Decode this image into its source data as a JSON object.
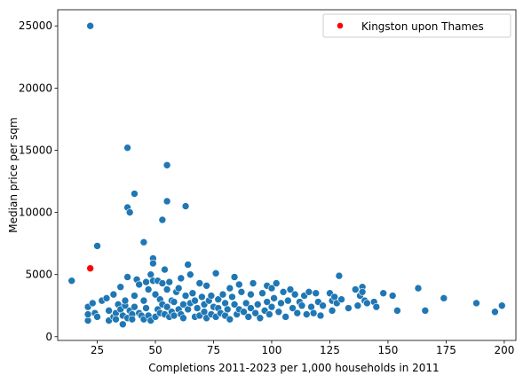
{
  "chart_data": {
    "type": "scatter",
    "title": "",
    "xlabel": "Completions 2011-2023 per 1,000 households in 2011",
    "ylabel": "Median price per sqm",
    "xlim": [
      8,
      205
    ],
    "ylim": [
      -300,
      26300
    ],
    "xticks": [
      25,
      50,
      75,
      100,
      125,
      150,
      175,
      200
    ],
    "yticks": [
      0,
      5000,
      10000,
      15000,
      20000,
      25000
    ],
    "grid": false,
    "legend_position": "top-right",
    "colors": {
      "default": "#1f77b4",
      "highlight": "#ff0000",
      "axis": "#000000",
      "marker_edge": "#ffffff"
    },
    "series": [
      {
        "name": "",
        "color": "#1f77b4",
        "points": [
          [
            22,
            25000
          ],
          [
            38,
            15200
          ],
          [
            55,
            13800
          ],
          [
            41,
            11500
          ],
          [
            55,
            10900
          ],
          [
            38,
            10400
          ],
          [
            39,
            10000
          ],
          [
            63,
            10500
          ],
          [
            53,
            9400
          ],
          [
            45,
            7600
          ],
          [
            25,
            7300
          ],
          [
            14,
            4500
          ],
          [
            21,
            1300
          ],
          [
            21,
            1800
          ],
          [
            21,
            2400
          ],
          [
            23,
            2700
          ],
          [
            24,
            1900
          ],
          [
            25,
            1600
          ],
          [
            27,
            2900
          ],
          [
            29,
            3100
          ],
          [
            30,
            2100
          ],
          [
            30,
            1300
          ],
          [
            32,
            3400
          ],
          [
            32,
            1600
          ],
          [
            33,
            1900
          ],
          [
            33,
            1400
          ],
          [
            34,
            2600
          ],
          [
            35,
            4000
          ],
          [
            35,
            2200
          ],
          [
            36,
            1700
          ],
          [
            36,
            1000
          ],
          [
            37,
            2500
          ],
          [
            37,
            2900
          ],
          [
            38,
            4800
          ],
          [
            38,
            1500
          ],
          [
            39,
            2100
          ],
          [
            40,
            1800
          ],
          [
            40,
            1400
          ],
          [
            41,
            2400
          ],
          [
            41,
            3300
          ],
          [
            42,
            4600
          ],
          [
            43,
            1900
          ],
          [
            43,
            4200
          ],
          [
            44,
            1700
          ],
          [
            45,
            2900
          ],
          [
            45,
            1400
          ],
          [
            46,
            4400
          ],
          [
            46,
            2300
          ],
          [
            47,
            3800
          ],
          [
            47,
            1700
          ],
          [
            48,
            5000
          ],
          [
            48,
            1300
          ],
          [
            49,
            6300
          ],
          [
            49,
            5900
          ],
          [
            49,
            4500
          ],
          [
            50,
            1600
          ],
          [
            50,
            3400
          ],
          [
            51,
            4500
          ],
          [
            51,
            2200
          ],
          [
            52,
            1900
          ],
          [
            52,
            3000
          ],
          [
            53,
            4300
          ],
          [
            53,
            2600
          ],
          [
            54,
            5400
          ],
          [
            54,
            1800
          ],
          [
            55,
            3800
          ],
          [
            55,
            2400
          ],
          [
            56,
            1600
          ],
          [
            56,
            4400
          ],
          [
            57,
            2900
          ],
          [
            57,
            2000
          ],
          [
            58,
            1700
          ],
          [
            58,
            2800
          ],
          [
            59,
            3600
          ],
          [
            60,
            3900
          ],
          [
            60,
            2200
          ],
          [
            61,
            1800
          ],
          [
            61,
            4700
          ],
          [
            62,
            2600
          ],
          [
            62,
            1500
          ],
          [
            63,
            3300
          ],
          [
            64,
            5800
          ],
          [
            64,
            2200
          ],
          [
            65,
            5000
          ],
          [
            65,
            2700
          ],
          [
            66,
            3500
          ],
          [
            67,
            1600
          ],
          [
            67,
            2900
          ],
          [
            68,
            2300
          ],
          [
            69,
            4300
          ],
          [
            69,
            1700
          ],
          [
            70,
            3200
          ],
          [
            71,
            2600
          ],
          [
            71,
            2000
          ],
          [
            72,
            4100
          ],
          [
            72,
            1500
          ],
          [
            73,
            2900
          ],
          [
            74,
            3300
          ],
          [
            74,
            1800
          ],
          [
            75,
            2400
          ],
          [
            76,
            5100
          ],
          [
            76,
            1600
          ],
          [
            77,
            3000
          ],
          [
            77,
            2300
          ],
          [
            78,
            1900
          ],
          [
            79,
            3400
          ],
          [
            80,
            2700
          ],
          [
            80,
            1700
          ],
          [
            81,
            2200
          ],
          [
            82,
            3900
          ],
          [
            82,
            1400
          ],
          [
            83,
            3200
          ],
          [
            84,
            4800
          ],
          [
            84,
            2600
          ],
          [
            85,
            1800
          ],
          [
            86,
            4200
          ],
          [
            86,
            2200
          ],
          [
            87,
            3600
          ],
          [
            88,
            2000
          ],
          [
            89,
            2700
          ],
          [
            90,
            1600
          ],
          [
            91,
            3400
          ],
          [
            91,
            2300
          ],
          [
            92,
            4300
          ],
          [
            93,
            1900
          ],
          [
            94,
            2600
          ],
          [
            95,
            1500
          ],
          [
            96,
            3500
          ],
          [
            97,
            2100
          ],
          [
            98,
            4100
          ],
          [
            98,
            2800
          ],
          [
            99,
            1800
          ],
          [
            100,
            3900
          ],
          [
            100,
            2400
          ],
          [
            101,
            3100
          ],
          [
            102,
            4300
          ],
          [
            103,
            2000
          ],
          [
            104,
            2700
          ],
          [
            105,
            3600
          ],
          [
            106,
            1600
          ],
          [
            107,
            2900
          ],
          [
            108,
            3800
          ],
          [
            109,
            2300
          ],
          [
            110,
            3400
          ],
          [
            111,
            1900
          ],
          [
            112,
            2800
          ],
          [
            113,
            2500
          ],
          [
            114,
            3300
          ],
          [
            115,
            1800
          ],
          [
            116,
            3600
          ],
          [
            117,
            2400
          ],
          [
            118,
            1900
          ],
          [
            119,
            3500
          ],
          [
            120,
            2800
          ],
          [
            121,
            1700
          ],
          [
            122,
            2500
          ],
          [
            125,
            3500
          ],
          [
            126,
            2100
          ],
          [
            126,
            2900
          ],
          [
            127,
            3200
          ],
          [
            128,
            2700
          ],
          [
            129,
            4900
          ],
          [
            130,
            3000
          ],
          [
            133,
            2300
          ],
          [
            136,
            3800
          ],
          [
            137,
            2500
          ],
          [
            138,
            3300
          ],
          [
            139,
            4000
          ],
          [
            139,
            3600
          ],
          [
            140,
            2900
          ],
          [
            141,
            2700
          ],
          [
            144,
            2800
          ],
          [
            145,
            2400
          ],
          [
            148,
            3500
          ],
          [
            152,
            3300
          ],
          [
            154,
            2100
          ],
          [
            163,
            3900
          ],
          [
            166,
            2100
          ],
          [
            174,
            3100
          ],
          [
            188,
            2700
          ],
          [
            196,
            2000
          ],
          [
            199,
            2500
          ]
        ]
      },
      {
        "name": "Kingston upon Thames",
        "color": "#ff0000",
        "points": [
          [
            22,
            5500
          ]
        ]
      }
    ]
  }
}
